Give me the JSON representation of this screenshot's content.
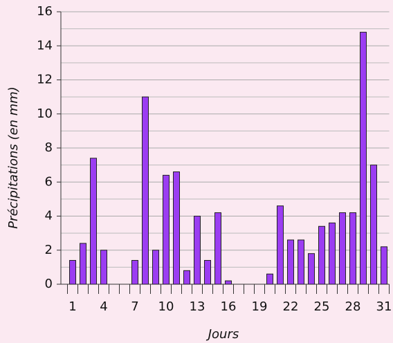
{
  "chart_data": {
    "type": "bar",
    "x_label": "Jours",
    "y_label": "Précipitations (en mm)",
    "categories": [
      "1",
      null,
      null,
      "4",
      null,
      null,
      "7",
      null,
      null,
      "10",
      null,
      null,
      "13",
      null,
      null,
      "16",
      null,
      null,
      "19",
      null,
      null,
      "22",
      null,
      null,
      "25",
      null,
      null,
      "28",
      null,
      null,
      "31"
    ],
    "values": [
      1.4,
      2.4,
      7.4,
      2.0,
      0,
      0,
      1.4,
      11.0,
      2.0,
      6.4,
      6.6,
      0.8,
      4.0,
      1.4,
      4.2,
      0.2,
      0,
      0,
      0,
      0.6,
      4.6,
      2.6,
      2.6,
      1.8,
      3.4,
      3.6,
      4.2,
      4.2,
      14.8,
      7.0,
      2.2
    ],
    "color": "#9b3df2",
    "ylim": [
      0,
      16
    ],
    "yticks": [
      0,
      2,
      4,
      6,
      8,
      10,
      12,
      14,
      16
    ],
    "minor_yticks": [
      1,
      3,
      5,
      7,
      9,
      11,
      13,
      15
    ],
    "grid": true
  }
}
